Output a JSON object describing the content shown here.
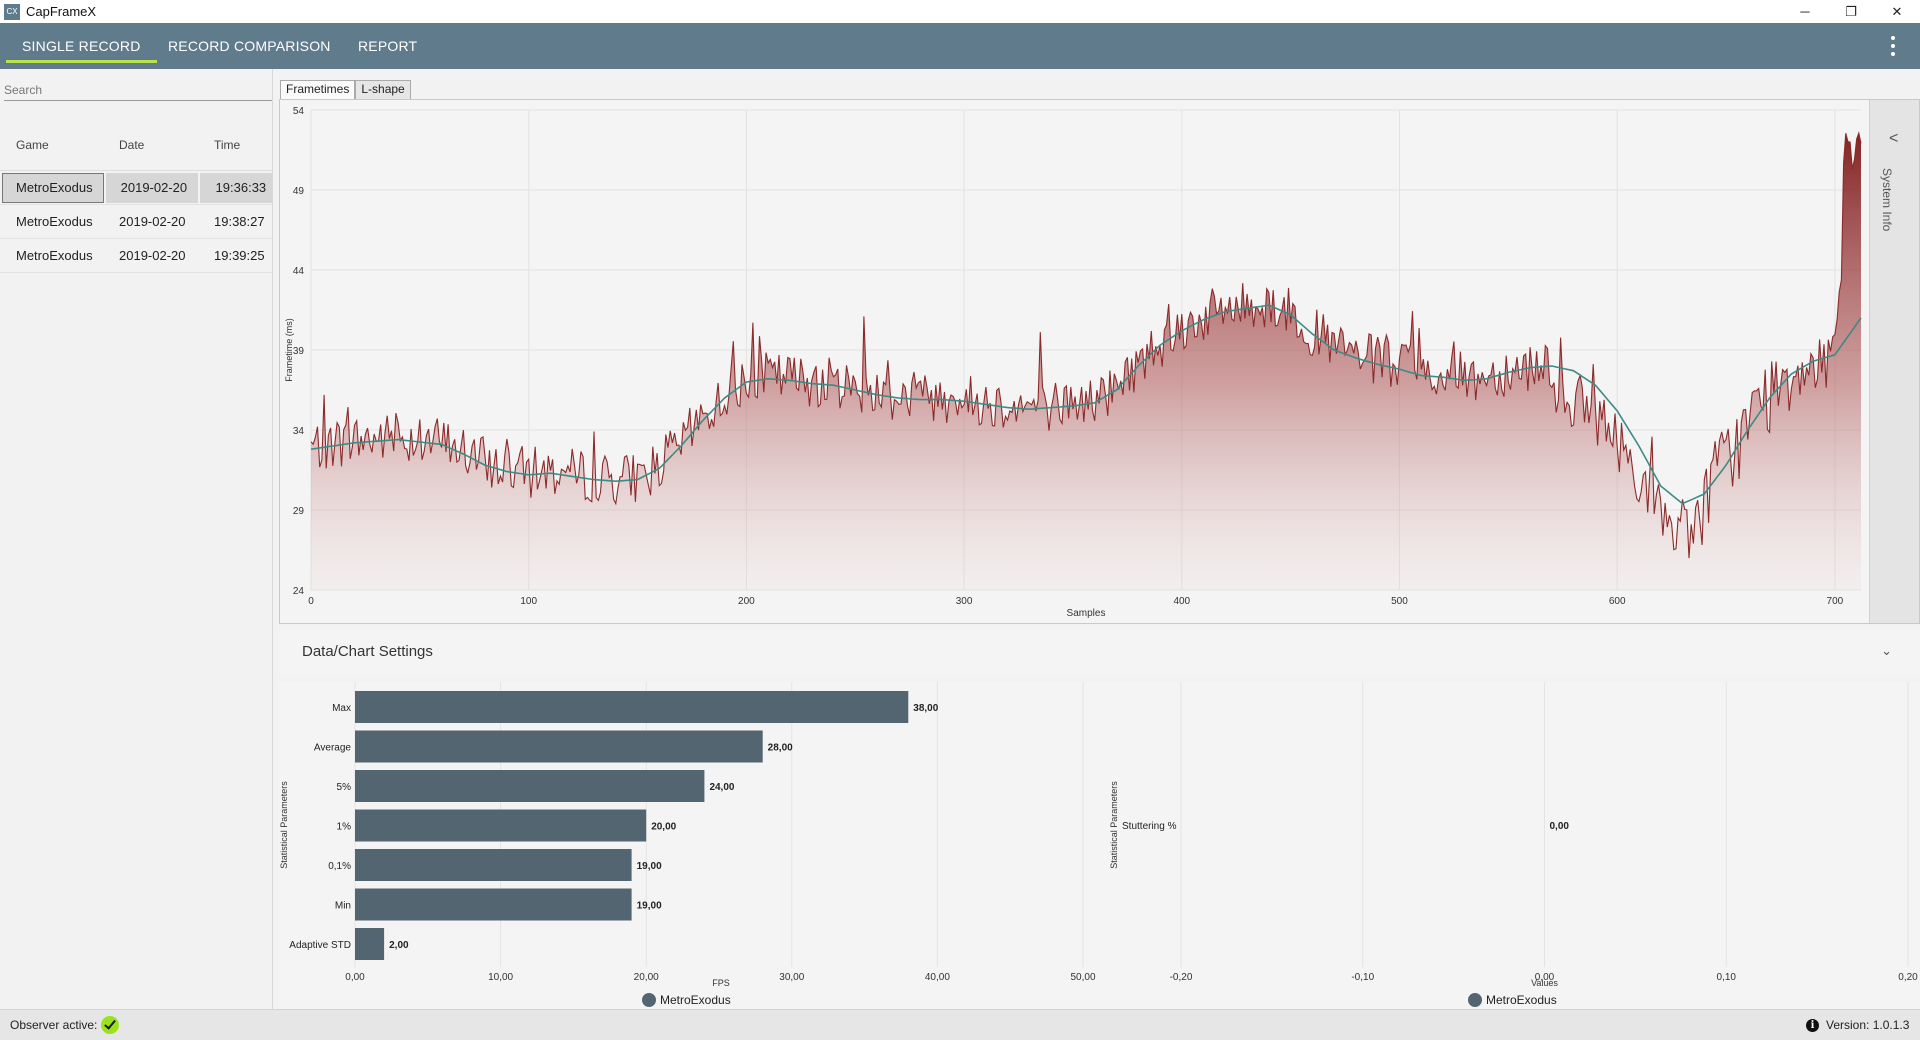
{
  "window": {
    "title": "CapFrameX",
    "icon_text": "CX",
    "minimize": "─",
    "maximize": "❐",
    "close": "✕"
  },
  "nav": {
    "tabs": [
      {
        "label": "SINGLE RECORD",
        "active": true
      },
      {
        "label": "RECORD COMPARISON",
        "active": false
      },
      {
        "label": "REPORT",
        "active": false
      }
    ],
    "menu_icon": "kebab-menu-icon"
  },
  "search": {
    "placeholder": "Search",
    "value": ""
  },
  "records": {
    "headers": [
      "Game",
      "Date",
      "Time"
    ],
    "rows": [
      {
        "game": "MetroExodus",
        "date": "2019-02-20",
        "time": "19:36:33",
        "selected": true
      },
      {
        "game": "MetroExodus",
        "date": "2019-02-20",
        "time": "19:38:27",
        "selected": false
      },
      {
        "game": "MetroExodus",
        "date": "2019-02-20",
        "time": "19:39:25",
        "selected": false
      }
    ]
  },
  "chart_tabs": [
    "Frametimes",
    "L-shape"
  ],
  "system_info": {
    "label": "System Info",
    "chevron": "<"
  },
  "settings": {
    "label": "Data/Chart Settings",
    "chevron": "⌄"
  },
  "status": {
    "observer_label": "Observer active:",
    "version": "Version: 1.0.1.3"
  },
  "colors": {
    "accent": "#b9e34d",
    "nav": "#5f7b8c",
    "bar": "#536570",
    "frametime_line": "#8b2a2a",
    "moving_avg": "#3e8a85"
  },
  "chart_data": [
    {
      "type": "area",
      "xlabel": "Samples",
      "ylabel": "Frametime (ms)",
      "xlim": [
        0,
        712
      ],
      "ylim": [
        24,
        54
      ],
      "xticks": [
        0,
        100,
        200,
        300,
        400,
        500,
        600,
        700
      ],
      "yticks": [
        24,
        29,
        34,
        39,
        44,
        49,
        54
      ],
      "moving_average": {
        "x": [
          0,
          20,
          40,
          60,
          70,
          80,
          90,
          100,
          110,
          120,
          130,
          140,
          150,
          160,
          170,
          180,
          190,
          200,
          210,
          220,
          230,
          240,
          250,
          260,
          270,
          280,
          290,
          300,
          310,
          320,
          330,
          340,
          350,
          360,
          370,
          380,
          390,
          400,
          410,
          420,
          430,
          440,
          450,
          460,
          470,
          480,
          490,
          500,
          510,
          520,
          530,
          540,
          550,
          560,
          570,
          580,
          590,
          600,
          610,
          620,
          630,
          640,
          650,
          660,
          670,
          680,
          690,
          700,
          712
        ],
        "y": [
          32.8,
          33.2,
          33.4,
          33.1,
          32.5,
          31.8,
          31.4,
          31.2,
          31.3,
          31.1,
          30.9,
          30.8,
          30.9,
          31.6,
          33.0,
          34.6,
          36.0,
          37.0,
          37.2,
          37.1,
          36.9,
          36.8,
          36.5,
          36.2,
          36.0,
          35.9,
          35.9,
          35.8,
          35.6,
          35.4,
          35.3,
          35.4,
          35.5,
          35.7,
          36.5,
          38.0,
          39.3,
          40.2,
          40.9,
          41.4,
          41.6,
          41.8,
          41.2,
          40.0,
          39.0,
          38.5,
          38.1,
          37.8,
          37.4,
          37.3,
          37.1,
          37.2,
          37.6,
          37.9,
          38.0,
          37.7,
          36.8,
          35.2,
          33.0,
          30.5,
          29.4,
          30.0,
          31.8,
          34.0,
          36.0,
          37.5,
          38.3,
          38.7,
          41.0
        ]
      },
      "frametime_series_note": "Raw frametime trace fluctuates ±3 ms around the moving average, with a spike to ~53 ms at sample ~705 and a dip to ~26 ms at sample ~617."
    },
    {
      "type": "bar",
      "orientation": "horizontal",
      "categories": [
        "Max",
        "Average",
        "5%",
        "1%",
        "0,1%",
        "Min",
        "Adaptive STD"
      ],
      "values": [
        38,
        28,
        24,
        20,
        19,
        19,
        2
      ],
      "value_labels": [
        "38,00",
        "28,00",
        "24,00",
        "20,00",
        "19,00",
        "19,00",
        "2,00"
      ],
      "xlabel": "FPS",
      "ylabel": "Statistical Parameters",
      "xlim": [
        0,
        50
      ],
      "xticks": [
        "0,00",
        "10,00",
        "20,00",
        "30,00",
        "40,00",
        "50,00"
      ],
      "series": [
        {
          "name": "MetroExodus"
        }
      ]
    },
    {
      "type": "bar",
      "orientation": "horizontal",
      "categories": [
        "Stuttering %"
      ],
      "values": [
        0
      ],
      "value_labels": [
        "0,00"
      ],
      "xlabel": "Values",
      "ylabel": "Statistical Parameters",
      "xlim": [
        -0.2,
        0.2
      ],
      "xticks": [
        "-0,20",
        "-0,10",
        "0,00",
        "0,10",
        "0,20"
      ],
      "series": [
        {
          "name": "MetroExodus"
        }
      ]
    }
  ]
}
